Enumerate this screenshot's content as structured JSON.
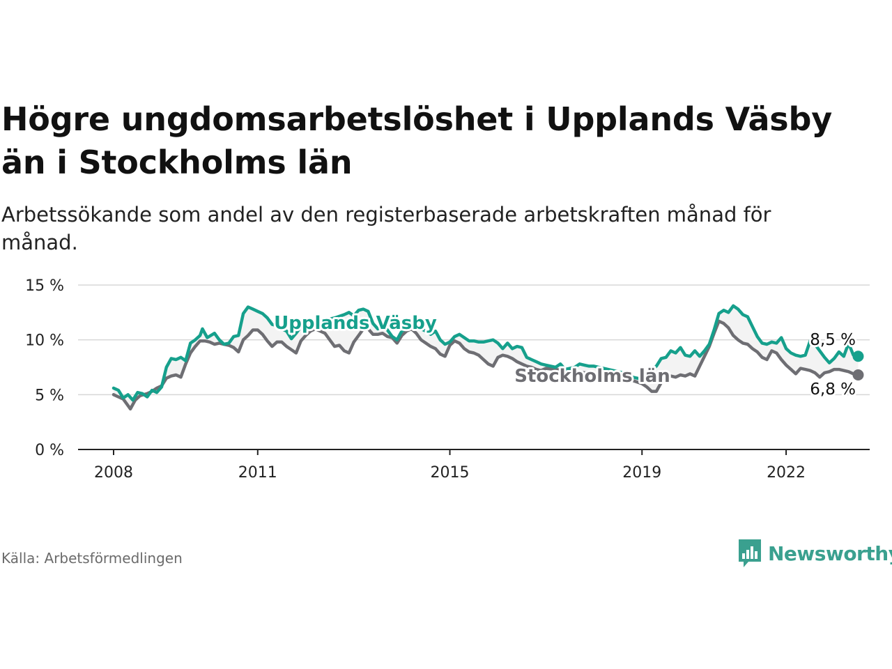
{
  "title": "Högre ungdomsarbetslöshet i Upplands Väsby än i Stockholms län",
  "subtitle": "Arbetssökande som andel av den registerbaserade arbetskraften månad för månad.",
  "source": "Källa: Arbetsförmedlingen",
  "brand": {
    "name": "Newsworthy",
    "color": "#3aa08f"
  },
  "colors": {
    "series1": "#16a08c",
    "series2": "#6e6e73",
    "grid": "#d7d7d7",
    "axis": "#222222"
  },
  "chart_data": {
    "type": "line",
    "title": "Högre ungdomsarbetslöshet i Upplands Väsby än i Stockholms län",
    "xlabel": "",
    "ylabel": "",
    "x_range": [
      2008.0,
      2023.0
    ],
    "ylim": [
      0,
      15
    ],
    "yticks": [
      0,
      5,
      10,
      15
    ],
    "ytick_labels": [
      "0 %",
      "5 %",
      "10 %",
      "15 %"
    ],
    "xticks": [
      2008,
      2011,
      2015,
      2019,
      2022
    ],
    "xtick_labels": [
      "2008",
      "2011",
      "2015",
      "2019",
      "2022"
    ],
    "grid": true,
    "series": [
      {
        "name": "Upplands Väsby",
        "label": "Upplands Väsby",
        "end_label": "8,5 %",
        "end_value": 8.5,
        "points": [
          [
            2008.0,
            5.6
          ],
          [
            2008.1,
            5.4
          ],
          [
            2008.2,
            4.7
          ],
          [
            2008.3,
            5.0
          ],
          [
            2008.4,
            4.5
          ],
          [
            2008.5,
            5.2
          ],
          [
            2008.6,
            5.1
          ],
          [
            2008.7,
            4.8
          ],
          [
            2008.8,
            5.4
          ],
          [
            2008.9,
            5.2
          ],
          [
            2009.0,
            5.7
          ],
          [
            2009.1,
            7.5
          ],
          [
            2009.2,
            8.3
          ],
          [
            2009.3,
            8.2
          ],
          [
            2009.4,
            8.4
          ],
          [
            2009.5,
            8.1
          ],
          [
            2009.6,
            9.7
          ],
          [
            2009.7,
            10.0
          ],
          [
            2009.8,
            10.4
          ],
          [
            2009.85,
            11.0
          ],
          [
            2009.95,
            10.2
          ],
          [
            2010.1,
            10.6
          ],
          [
            2010.2,
            10.0
          ],
          [
            2010.3,
            9.6
          ],
          [
            2010.4,
            9.7
          ],
          [
            2010.5,
            10.3
          ],
          [
            2010.6,
            10.4
          ],
          [
            2010.7,
            12.4
          ],
          [
            2010.8,
            13.0
          ],
          [
            2010.9,
            12.8
          ],
          [
            2011.0,
            12.6
          ],
          [
            2011.1,
            12.4
          ],
          [
            2011.2,
            12.0
          ],
          [
            2011.3,
            11.4
          ],
          [
            2011.4,
            11.3
          ],
          [
            2011.5,
            11.0
          ],
          [
            2011.6,
            10.8
          ],
          [
            2011.7,
            10.1
          ],
          [
            2011.8,
            10.6
          ],
          [
            2011.9,
            11.2
          ],
          [
            2012.0,
            11.4
          ],
          [
            2012.2,
            11.6
          ],
          [
            2012.4,
            11.8
          ],
          [
            2012.6,
            12.0
          ],
          [
            2012.8,
            12.3
          ],
          [
            2012.9,
            12.5
          ],
          [
            2013.0,
            12.2
          ],
          [
            2013.1,
            12.7
          ],
          [
            2013.2,
            12.8
          ],
          [
            2013.3,
            12.6
          ],
          [
            2013.4,
            11.5
          ],
          [
            2013.5,
            11.0
          ],
          [
            2013.6,
            11.3
          ],
          [
            2013.7,
            10.9
          ],
          [
            2013.8,
            10.3
          ],
          [
            2013.9,
            10.0
          ],
          [
            2014.0,
            10.8
          ],
          [
            2014.2,
            11.3
          ],
          [
            2014.4,
            11.0
          ],
          [
            2014.5,
            10.8
          ],
          [
            2014.6,
            10.5
          ],
          [
            2014.7,
            10.8
          ],
          [
            2014.8,
            10.0
          ],
          [
            2014.9,
            9.6
          ],
          [
            2015.0,
            9.8
          ],
          [
            2015.1,
            10.3
          ],
          [
            2015.2,
            10.5
          ],
          [
            2015.3,
            10.2
          ],
          [
            2015.4,
            9.9
          ],
          [
            2015.5,
            9.9
          ],
          [
            2015.6,
            9.8
          ],
          [
            2015.7,
            9.8
          ],
          [
            2015.8,
            9.9
          ],
          [
            2015.9,
            10.0
          ],
          [
            2016.0,
            9.7
          ],
          [
            2016.1,
            9.2
          ],
          [
            2016.2,
            9.7
          ],
          [
            2016.3,
            9.2
          ],
          [
            2016.4,
            9.4
          ],
          [
            2016.5,
            9.3
          ],
          [
            2016.6,
            8.4
          ],
          [
            2016.7,
            8.2
          ],
          [
            2016.8,
            8.0
          ],
          [
            2016.9,
            7.8
          ],
          [
            2017.0,
            7.7
          ],
          [
            2017.1,
            7.6
          ],
          [
            2017.2,
            7.5
          ],
          [
            2017.3,
            7.8
          ],
          [
            2017.4,
            7.3
          ],
          [
            2017.5,
            7.4
          ],
          [
            2017.6,
            7.5
          ],
          [
            2017.7,
            7.8
          ],
          [
            2017.8,
            7.7
          ],
          [
            2017.9,
            7.6
          ],
          [
            2018.0,
            7.6
          ],
          [
            2018.2,
            7.4
          ],
          [
            2018.4,
            7.2
          ],
          [
            2018.6,
            7.0
          ],
          [
            2018.7,
            6.8
          ],
          [
            2018.8,
            6.6
          ],
          [
            2018.9,
            6.5
          ],
          [
            2019.0,
            6.4
          ],
          [
            2019.1,
            6.8
          ],
          [
            2019.2,
            7.2
          ],
          [
            2019.3,
            7.6
          ],
          [
            2019.4,
            8.3
          ],
          [
            2019.5,
            8.4
          ],
          [
            2019.6,
            9.0
          ],
          [
            2019.7,
            8.8
          ],
          [
            2019.8,
            9.3
          ],
          [
            2019.9,
            8.6
          ],
          [
            2020.0,
            8.5
          ],
          [
            2020.1,
            9.0
          ],
          [
            2020.2,
            8.5
          ],
          [
            2020.3,
            9.0
          ],
          [
            2020.4,
            9.6
          ],
          [
            2020.5,
            10.9
          ],
          [
            2020.6,
            12.4
          ],
          [
            2020.7,
            12.7
          ],
          [
            2020.8,
            12.5
          ],
          [
            2020.9,
            13.1
          ],
          [
            2021.0,
            12.8
          ],
          [
            2021.1,
            12.3
          ],
          [
            2021.2,
            12.1
          ],
          [
            2021.3,
            11.2
          ],
          [
            2021.4,
            10.3
          ],
          [
            2021.5,
            9.7
          ],
          [
            2021.6,
            9.6
          ],
          [
            2021.7,
            9.8
          ],
          [
            2021.8,
            9.7
          ],
          [
            2021.9,
            10.2
          ],
          [
            2022.0,
            9.2
          ],
          [
            2022.1,
            8.8
          ],
          [
            2022.2,
            8.6
          ],
          [
            2022.3,
            8.5
          ],
          [
            2022.4,
            8.6
          ],
          [
            2022.5,
            9.9
          ],
          [
            2022.6,
            9.6
          ],
          [
            2022.7,
            9.0
          ],
          [
            2022.8,
            8.4
          ],
          [
            2022.9,
            7.9
          ],
          [
            2023.0,
            8.3
          ],
          [
            2023.1,
            8.9
          ],
          [
            2023.2,
            8.5
          ],
          [
            2023.3,
            9.7
          ],
          [
            2023.4,
            8.6
          ],
          [
            2023.5,
            8.5
          ]
        ]
      },
      {
        "name": "Stockholms län",
        "label": "Stockholms län",
        "end_label": "6,8 %",
        "end_value": 6.8,
        "points": [
          [
            2008.0,
            5.0
          ],
          [
            2008.1,
            4.8
          ],
          [
            2008.2,
            4.6
          ],
          [
            2008.3,
            4.0
          ],
          [
            2008.35,
            3.7
          ],
          [
            2008.45,
            4.5
          ],
          [
            2008.55,
            4.9
          ],
          [
            2008.7,
            5.1
          ],
          [
            2008.8,
            5.3
          ],
          [
            2008.9,
            5.6
          ],
          [
            2009.0,
            5.8
          ],
          [
            2009.1,
            6.5
          ],
          [
            2009.2,
            6.7
          ],
          [
            2009.3,
            6.8
          ],
          [
            2009.4,
            6.6
          ],
          [
            2009.5,
            7.8
          ],
          [
            2009.6,
            8.8
          ],
          [
            2009.7,
            9.4
          ],
          [
            2009.8,
            9.9
          ],
          [
            2009.9,
            9.9
          ],
          [
            2010.0,
            9.8
          ],
          [
            2010.1,
            9.6
          ],
          [
            2010.2,
            9.7
          ],
          [
            2010.3,
            9.6
          ],
          [
            2010.4,
            9.5
          ],
          [
            2010.5,
            9.3
          ],
          [
            2010.6,
            8.9
          ],
          [
            2010.7,
            10.0
          ],
          [
            2010.8,
            10.4
          ],
          [
            2010.9,
            10.9
          ],
          [
            2011.0,
            10.9
          ],
          [
            2011.1,
            10.5
          ],
          [
            2011.2,
            9.9
          ],
          [
            2011.3,
            9.4
          ],
          [
            2011.4,
            9.8
          ],
          [
            2011.5,
            9.8
          ],
          [
            2011.6,
            9.4
          ],
          [
            2011.7,
            9.1
          ],
          [
            2011.8,
            8.8
          ],
          [
            2011.9,
            9.9
          ],
          [
            2012.0,
            10.4
          ],
          [
            2012.1,
            10.8
          ],
          [
            2012.2,
            11.0
          ],
          [
            2012.3,
            10.8
          ],
          [
            2012.4,
            10.6
          ],
          [
            2012.5,
            10.0
          ],
          [
            2012.6,
            9.4
          ],
          [
            2012.7,
            9.5
          ],
          [
            2012.8,
            9.0
          ],
          [
            2012.9,
            8.8
          ],
          [
            2013.0,
            9.8
          ],
          [
            2013.1,
            10.4
          ],
          [
            2013.2,
            11.0
          ],
          [
            2013.3,
            11.0
          ],
          [
            2013.4,
            10.5
          ],
          [
            2013.5,
            10.5
          ],
          [
            2013.6,
            10.6
          ],
          [
            2013.7,
            10.3
          ],
          [
            2013.8,
            10.2
          ],
          [
            2013.9,
            9.7
          ],
          [
            2014.0,
            10.4
          ],
          [
            2014.1,
            10.8
          ],
          [
            2014.2,
            11.0
          ],
          [
            2014.3,
            10.6
          ],
          [
            2014.4,
            10.0
          ],
          [
            2014.5,
            9.7
          ],
          [
            2014.6,
            9.4
          ],
          [
            2014.7,
            9.2
          ],
          [
            2014.8,
            8.7
          ],
          [
            2014.9,
            8.5
          ],
          [
            2015.0,
            9.5
          ],
          [
            2015.1,
            9.9
          ],
          [
            2015.2,
            9.7
          ],
          [
            2015.3,
            9.2
          ],
          [
            2015.4,
            8.9
          ],
          [
            2015.5,
            8.8
          ],
          [
            2015.6,
            8.6
          ],
          [
            2015.7,
            8.2
          ],
          [
            2015.8,
            7.8
          ],
          [
            2015.9,
            7.6
          ],
          [
            2016.0,
            8.4
          ],
          [
            2016.1,
            8.6
          ],
          [
            2016.2,
            8.5
          ],
          [
            2016.3,
            8.3
          ],
          [
            2016.4,
            8.0
          ],
          [
            2016.5,
            7.8
          ],
          [
            2016.6,
            7.6
          ],
          [
            2016.7,
            7.5
          ],
          [
            2016.8,
            7.3
          ],
          [
            2016.9,
            7.2
          ],
          [
            2017.0,
            7.4
          ],
          [
            2017.2,
            7.3
          ],
          [
            2017.4,
            7.2
          ],
          [
            2017.6,
            7.1
          ],
          [
            2017.8,
            7.0
          ],
          [
            2018.0,
            6.9
          ],
          [
            2018.2,
            6.8
          ],
          [
            2018.4,
            6.7
          ],
          [
            2018.6,
            6.5
          ],
          [
            2018.8,
            6.3
          ],
          [
            2019.0,
            6.0
          ],
          [
            2019.1,
            5.7
          ],
          [
            2019.2,
            5.3
          ],
          [
            2019.3,
            5.3
          ],
          [
            2019.4,
            6.1
          ],
          [
            2019.5,
            6.6
          ],
          [
            2019.6,
            6.7
          ],
          [
            2019.7,
            6.6
          ],
          [
            2019.8,
            6.8
          ],
          [
            2019.9,
            6.7
          ],
          [
            2020.0,
            6.9
          ],
          [
            2020.1,
            6.7
          ],
          [
            2020.2,
            7.6
          ],
          [
            2020.3,
            8.5
          ],
          [
            2020.4,
            9.4
          ],
          [
            2020.5,
            10.6
          ],
          [
            2020.6,
            11.7
          ],
          [
            2020.7,
            11.5
          ],
          [
            2020.8,
            11.1
          ],
          [
            2020.9,
            10.4
          ],
          [
            2021.0,
            10.0
          ],
          [
            2021.1,
            9.7
          ],
          [
            2021.2,
            9.6
          ],
          [
            2021.3,
            9.2
          ],
          [
            2021.4,
            8.9
          ],
          [
            2021.5,
            8.4
          ],
          [
            2021.6,
            8.2
          ],
          [
            2021.7,
            9.0
          ],
          [
            2021.8,
            8.8
          ],
          [
            2021.9,
            8.2
          ],
          [
            2022.0,
            7.7
          ],
          [
            2022.1,
            7.3
          ],
          [
            2022.2,
            6.9
          ],
          [
            2022.3,
            7.4
          ],
          [
            2022.4,
            7.3
          ],
          [
            2022.5,
            7.2
          ],
          [
            2022.6,
            7.0
          ],
          [
            2022.7,
            6.6
          ],
          [
            2022.8,
            7.0
          ],
          [
            2022.9,
            7.1
          ],
          [
            2023.0,
            7.3
          ],
          [
            2023.1,
            7.3
          ],
          [
            2023.2,
            7.2
          ],
          [
            2023.3,
            7.1
          ],
          [
            2023.4,
            6.9
          ],
          [
            2023.5,
            6.8
          ]
        ]
      }
    ]
  }
}
